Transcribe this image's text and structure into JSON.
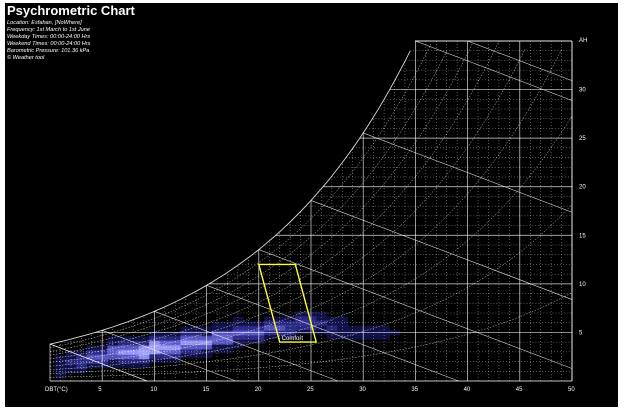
{
  "chart_data": {
    "type": "heatmap",
    "title": "Psychrometric Chart",
    "info_lines": [
      "Location: Esfahan, [NoWhere]",
      "Frequency: 1st March to 1st June",
      "Weekday Times: 00:00-24:00 Hrs",
      "Weekend Times: 00:00-24:00 Hrs",
      "Barometric Pressure: 101.36 kPa",
      "© Weather tool"
    ],
    "xlabel": "DBT(°C)",
    "ylabel": "AH",
    "x_ticks": [
      5,
      10,
      15,
      20,
      25,
      30,
      35,
      40,
      45,
      50
    ],
    "y_ticks": [
      5,
      10,
      15,
      20,
      25,
      30
    ],
    "xlim": [
      0,
      50
    ],
    "ylim": [
      0,
      35
    ],
    "grid": true,
    "comfort_zone": {
      "label": "Comfort",
      "points": [
        [
          20,
          12
        ],
        [
          23.5,
          12
        ],
        [
          25.5,
          4
        ],
        [
          22,
          4
        ]
      ]
    },
    "frequency_cloud": {
      "description_colors": [
        "#1a1a6e",
        "#3a3ab0",
        "#6a6ae8",
        "#a0a0ff"
      ],
      "cells": [
        {
          "t": 1,
          "ah": 1.5,
          "f": 0.2
        },
        {
          "t": 2,
          "ah": 2,
          "f": 0.3
        },
        {
          "t": 3,
          "ah": 2,
          "f": 0.4
        },
        {
          "t": 4,
          "ah": 2.5,
          "f": 0.5
        },
        {
          "t": 5,
          "ah": 2.5,
          "f": 0.6
        },
        {
          "t": 6,
          "ah": 3,
          "f": 0.7
        },
        {
          "t": 7,
          "ah": 3,
          "f": 0.8
        },
        {
          "t": 8,
          "ah": 3,
          "f": 0.9
        },
        {
          "t": 9,
          "ah": 3,
          "f": 1.0
        },
        {
          "t": 10,
          "ah": 3.5,
          "f": 1.0
        },
        {
          "t": 11,
          "ah": 3.5,
          "f": 0.95
        },
        {
          "t": 12,
          "ah": 3.5,
          "f": 0.9
        },
        {
          "t": 13,
          "ah": 4,
          "f": 0.85
        },
        {
          "t": 14,
          "ah": 4,
          "f": 0.8
        },
        {
          "t": 15,
          "ah": 4,
          "f": 0.75
        },
        {
          "t": 16,
          "ah": 4.5,
          "f": 0.7
        },
        {
          "t": 17,
          "ah": 4.5,
          "f": 0.7
        },
        {
          "t": 18,
          "ah": 5,
          "f": 0.65
        },
        {
          "t": 19,
          "ah": 5,
          "f": 0.6
        },
        {
          "t": 20,
          "ah": 5,
          "f": 0.55
        },
        {
          "t": 21,
          "ah": 5.5,
          "f": 0.5
        },
        {
          "t": 22,
          "ah": 5.5,
          "f": 0.5
        },
        {
          "t": 23,
          "ah": 5.5,
          "f": 0.45
        },
        {
          "t": 24,
          "ah": 6,
          "f": 0.4
        },
        {
          "t": 25,
          "ah": 6,
          "f": 0.35
        },
        {
          "t": 26,
          "ah": 6,
          "f": 0.3
        },
        {
          "t": 27,
          "ah": 5.5,
          "f": 0.25
        },
        {
          "t": 28,
          "ah": 5.5,
          "f": 0.2
        },
        {
          "t": 29,
          "ah": 5,
          "f": 0.15
        },
        {
          "t": 30,
          "ah": 5,
          "f": 0.12
        },
        {
          "t": 31,
          "ah": 5,
          "f": 0.1
        },
        {
          "t": 32,
          "ah": 5,
          "f": 0.08
        },
        {
          "t": 33,
          "ah": 5,
          "f": 0.06
        }
      ]
    }
  }
}
